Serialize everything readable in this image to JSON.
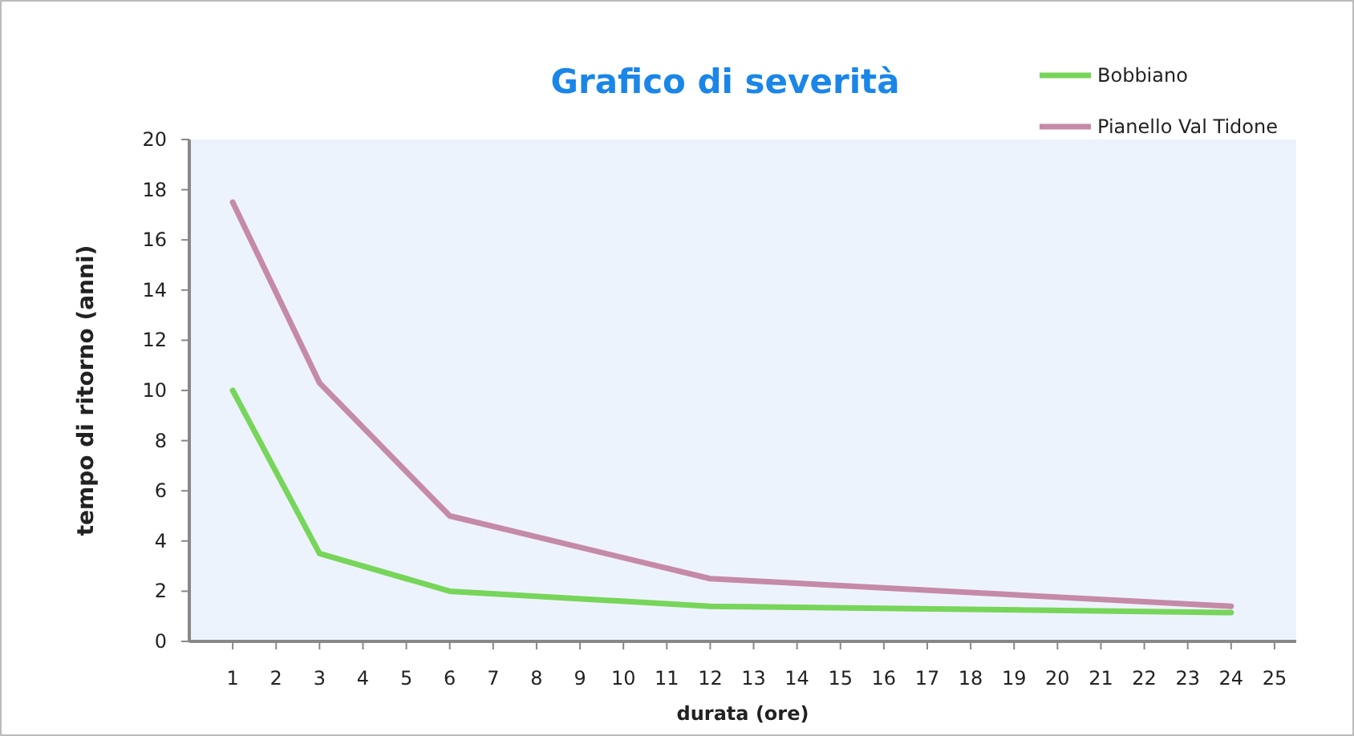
{
  "chart_data": {
    "type": "line",
    "title": "Grafico di severità",
    "xlabel": "durata (ore)",
    "ylabel": "tempo di ritorno (anni)",
    "x": [
      1,
      3,
      6,
      12,
      24
    ],
    "series": [
      {
        "name": "Bobbiano",
        "color": "#77d55a",
        "values": [
          10,
          3.5,
          2,
          1.4,
          1.15
        ]
      },
      {
        "name": "Pianello Val Tidone",
        "color": "#c58aa8",
        "values": [
          17.5,
          10.3,
          5,
          2.5,
          1.4
        ]
      }
    ],
    "xlim": [
      0,
      25.5
    ],
    "xticks": [
      1,
      2,
      3,
      4,
      5,
      6,
      7,
      8,
      9,
      10,
      11,
      12,
      13,
      14,
      15,
      16,
      17,
      18,
      19,
      20,
      21,
      22,
      23,
      24,
      25
    ],
    "ylim": [
      0,
      20
    ],
    "yticks": [
      0,
      2,
      4,
      6,
      8,
      10,
      12,
      14,
      16,
      18,
      20
    ],
    "legend": "top right",
    "marker": "none",
    "line_style": "solid"
  }
}
